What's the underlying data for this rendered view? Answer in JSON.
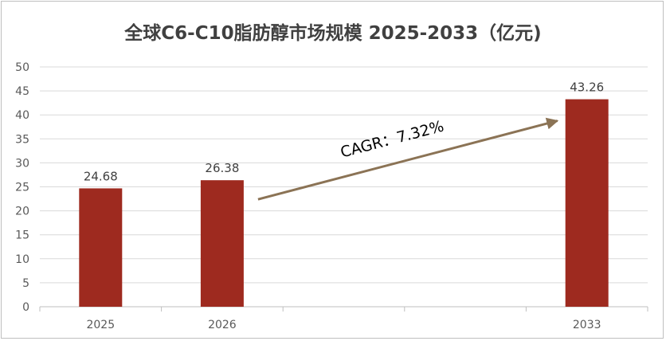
{
  "chart_data": {
    "type": "bar",
    "title": "全球C6-C10脂肪醇市场规模 2025-2033（亿元)",
    "categories": [
      "2025",
      "2026",
      "",
      "",
      "2033"
    ],
    "values": [
      24.68,
      26.38,
      null,
      null,
      43.26
    ],
    "data_labels": [
      "24.68",
      "26.38",
      "",
      "",
      "43.26"
    ],
    "ylim": [
      0,
      50
    ],
    "yticks": [
      0,
      5,
      10,
      15,
      20,
      25,
      30,
      35,
      40,
      45,
      50
    ],
    "grid": true,
    "legend": "none",
    "bar_color": "#9E2A1F",
    "annotation": {
      "text": "CAGR：7.32%",
      "arrow_color": "#8B7355"
    }
  }
}
